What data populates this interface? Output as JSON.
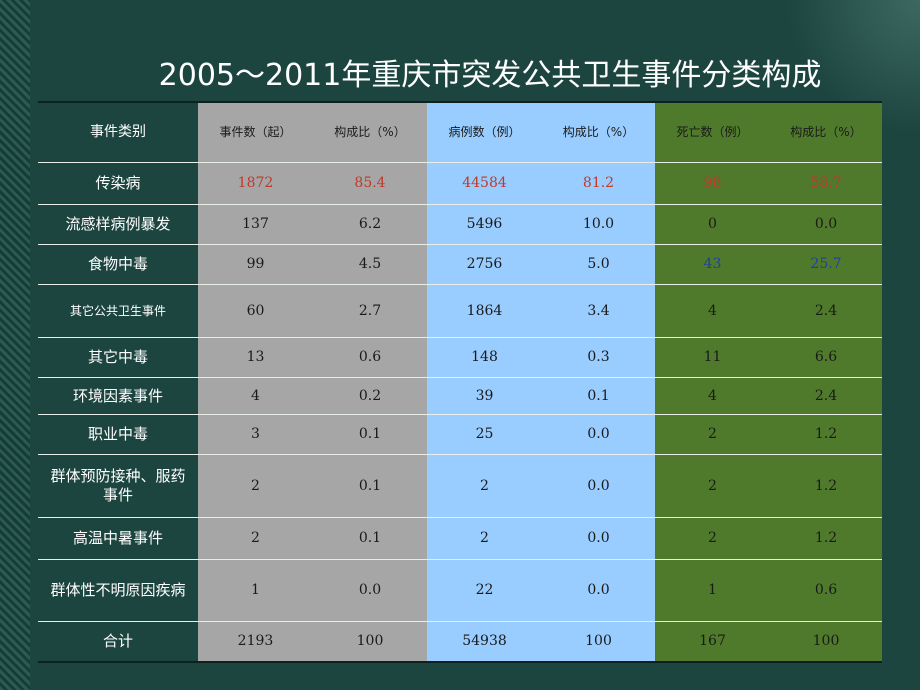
{
  "title": "2005～2011年重庆市突发公共卫生事件分类构成",
  "table": {
    "header": [
      "事件类别",
      "事件数（起）",
      "构成比（%）",
      "病例数（例）",
      "构成比（%）",
      "死亡数（例）",
      "构成比（%）"
    ],
    "rows": [
      [
        "传染病",
        "1872",
        "85.4",
        "44584",
        "81.2",
        "98",
        "58.7"
      ],
      [
        "流感样病例暴发",
        "137",
        "6.2",
        "5496",
        "10.0",
        "0",
        "0.0"
      ],
      [
        "食物中毒",
        "99",
        "4.5",
        "2756",
        "5.0",
        "43",
        "25.7"
      ],
      [
        "其它公共卫生事件",
        "60",
        "2.7",
        "1864",
        "3.4",
        "4",
        "2.4"
      ],
      [
        "其它中毒",
        "13",
        "0.6",
        "148",
        "0.3",
        "11",
        "6.6"
      ],
      [
        "环境因素事件",
        "4",
        "0.2",
        "39",
        "0.1",
        "4",
        "2.4"
      ],
      [
        "职业中毒",
        "3",
        "0.1",
        "25",
        "0.0",
        "2",
        "1.2"
      ],
      [
        "群体预防接种、服药事件",
        "2",
        "0.1",
        "2",
        "0.0",
        "2",
        "1.2"
      ],
      [
        "高温中暑事件",
        "2",
        "0.1",
        "2",
        "0.0",
        "2",
        "1.2"
      ],
      [
        "群体性不明原因疾病",
        "1",
        "0.0",
        "22",
        "0.0",
        "1",
        "0.6"
      ],
      [
        "合计",
        "2193",
        "100",
        "54938",
        "100",
        "167",
        "100"
      ]
    ]
  }
}
